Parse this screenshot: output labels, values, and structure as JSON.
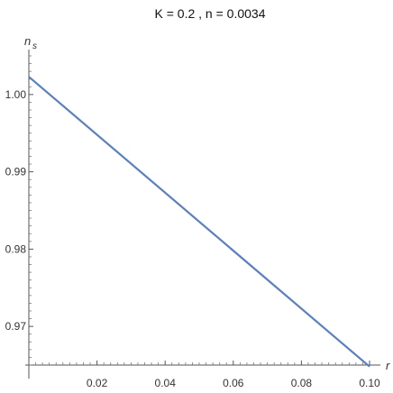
{
  "chart_data": {
    "type": "line",
    "title": "K = 0.2 ,  n = 0.0034",
    "xlabel": "r",
    "ylabel": "n",
    "ylabel_subscript": "s",
    "xlim": [
      0,
      0.1
    ],
    "ylim": [
      0.965,
      1.005
    ],
    "xticks": [
      0.02,
      0.04,
      0.06,
      0.08,
      0.1
    ],
    "xtick_labels": [
      "0.02",
      "0.04",
      "0.06",
      "0.08",
      "0.10"
    ],
    "yticks": [
      0.97,
      0.98,
      0.99,
      1.0
    ],
    "ytick_labels": [
      "0.97",
      "0.98",
      "0.99",
      "1.00"
    ],
    "series": [
      {
        "color": "#5b7fbf",
        "x": [
          0.0,
          0.1
        ],
        "y": [
          1.0023,
          0.9648
        ]
      }
    ],
    "grid": false,
    "legend": "none"
  }
}
